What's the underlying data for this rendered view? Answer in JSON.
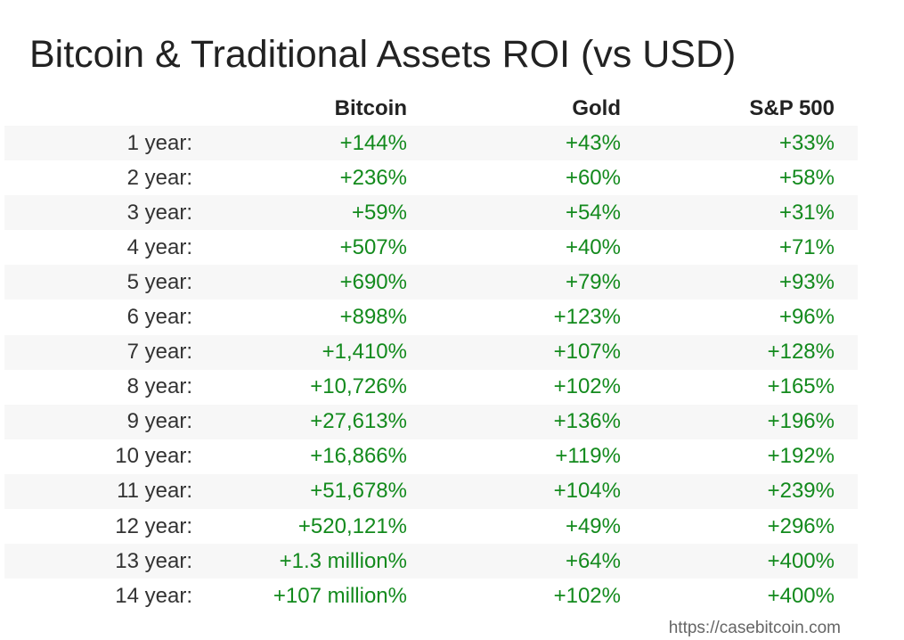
{
  "chart_data": {
    "type": "table",
    "title": "Bitcoin & Traditional Assets ROI (vs USD)",
    "columns": [
      "",
      "Bitcoin",
      "Gold",
      "S&P 500"
    ],
    "rows": [
      [
        "1 year:",
        "+144%",
        "+43%",
        "+33%"
      ],
      [
        "2 year:",
        "+236%",
        "+60%",
        "+58%"
      ],
      [
        "3 year:",
        "+59%",
        "+54%",
        "+31%"
      ],
      [
        "4 year:",
        "+507%",
        "+40%",
        "+71%"
      ],
      [
        "5 year:",
        "+690%",
        "+79%",
        "+93%"
      ],
      [
        "6 year:",
        "+898%",
        "+123%",
        "+96%"
      ],
      [
        "7 year:",
        "+1,410%",
        "+107%",
        "+128%"
      ],
      [
        "8 year:",
        "+10,726%",
        "+102%",
        "+165%"
      ],
      [
        "9 year:",
        "+27,613%",
        "+136%",
        "+196%"
      ],
      [
        "10 year:",
        "+16,866%",
        "+119%",
        "+192%"
      ],
      [
        "11 year:",
        "+51,678%",
        "+104%",
        "+239%"
      ],
      [
        "12 year:",
        "+520,121%",
        "+49%",
        "+296%"
      ],
      [
        "13 year:",
        "+1.3 million%",
        "+64%",
        "+400%"
      ],
      [
        "14 year:",
        "+107 million%",
        "+102%",
        "+400%"
      ]
    ],
    "source": "https://casebitcoin.com",
    "colors": {
      "positive_value": "#138a1d",
      "row_label": "#333333",
      "header": "#222222",
      "stripe": "#f7f7f7"
    }
  }
}
